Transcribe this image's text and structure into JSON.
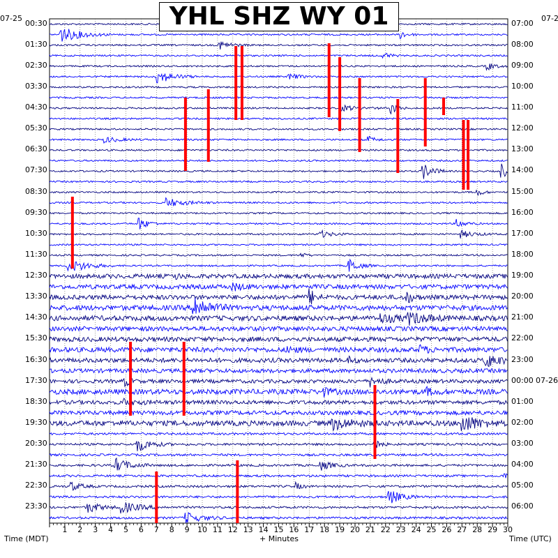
{
  "chart_data": {
    "type": "line",
    "title": "YHL SHZ WY 01",
    "left_date_label": "07-25",
    "right_date_label_start": "07-2",
    "right_date_label_mid": "07-26",
    "left_axis_label": "Time (MDT)",
    "right_axis_label": "Time (UTC)",
    "x_axis_label": "+ Minutes",
    "x_ticks": [
      "1",
      "2",
      "3",
      "4",
      "5",
      "6",
      "7",
      "8",
      "9",
      "10",
      "11",
      "12",
      "13",
      "14",
      "15",
      "16",
      "17",
      "18",
      "19",
      "20",
      "21",
      "22",
      "23",
      "24",
      "25",
      "26",
      "27",
      "28",
      "29",
      "30"
    ],
    "xlim": [
      0,
      30
    ],
    "left_time_labels": [
      "00:30",
      "01:30",
      "02:30",
      "03:30",
      "04:30",
      "05:30",
      "06:30",
      "07:30",
      "08:30",
      "09:30",
      "10:30",
      "11:30",
      "12:30",
      "13:30",
      "14:30",
      "15:30",
      "16:30",
      "17:30",
      "18:30",
      "19:30",
      "20:30",
      "21:30",
      "22:30",
      "23:30"
    ],
    "right_time_labels": [
      "07:00",
      "08:00",
      "09:00",
      "10:00",
      "11:00",
      "12:00",
      "13:00",
      "14:00",
      "15:00",
      "16:00",
      "17:00",
      "18:00",
      "19:00",
      "20:00",
      "21:00",
      "22:00",
      "23:00",
      "00:00",
      "01:00",
      "02:00",
      "03:00",
      "04:00",
      "05:00",
      "06:00"
    ],
    "trace_colors": [
      "#000080",
      "#0000ff"
    ],
    "clip_color": "#ff0000",
    "grid": true
  }
}
